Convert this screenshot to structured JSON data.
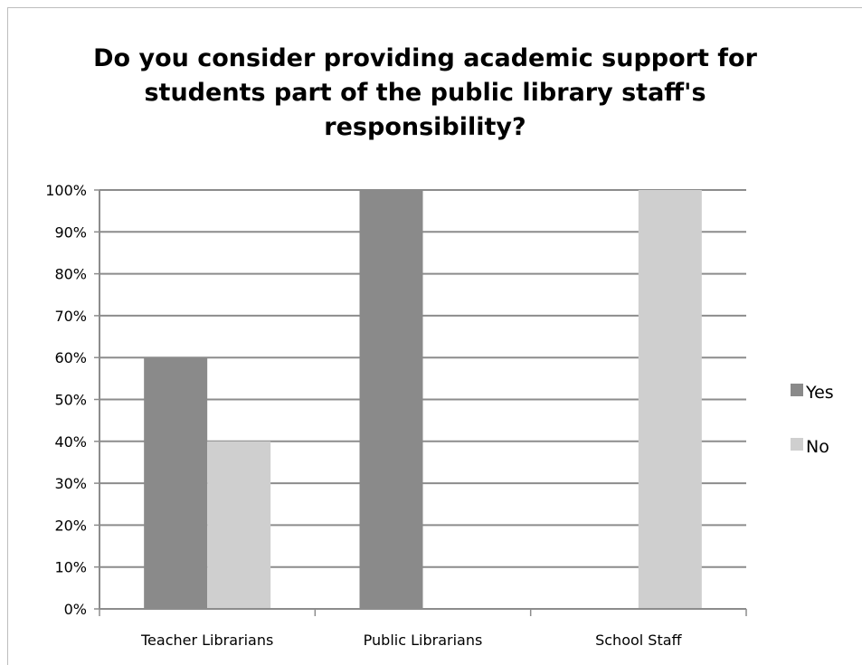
{
  "chart_data": {
    "type": "bar",
    "title": "Do you consider providing academic support for students part of the public library staff's responsibility?",
    "title_lines": [
      "Do you consider providing academic support for",
      "students part of the public library staff's",
      "responsibility?"
    ],
    "categories": [
      "Teacher Librarians",
      "Public Librarians",
      "School Staff"
    ],
    "series": [
      {
        "name": "Yes",
        "values": [
          0.6,
          1.0,
          0.0
        ],
        "color": "#8a8a8a"
      },
      {
        "name": "No",
        "values": [
          0.4,
          0.0,
          1.0
        ],
        "color": "#cfcfcf"
      }
    ],
    "ylim": [
      0,
      1
    ],
    "yticks": [
      0,
      0.1,
      0.2,
      0.3,
      0.4,
      0.5,
      0.6,
      0.7,
      0.8,
      0.9,
      1.0
    ],
    "ytick_labels": [
      "0%",
      "10%",
      "20%",
      "30%",
      "40%",
      "50%",
      "60%",
      "70%",
      "80%",
      "90%",
      "100%"
    ],
    "xlabel": "",
    "ylabel": "",
    "grid": true,
    "legend_position": "right",
    "gridline_color": "#8c8c8c",
    "axis_color": "#8c8c8c"
  }
}
